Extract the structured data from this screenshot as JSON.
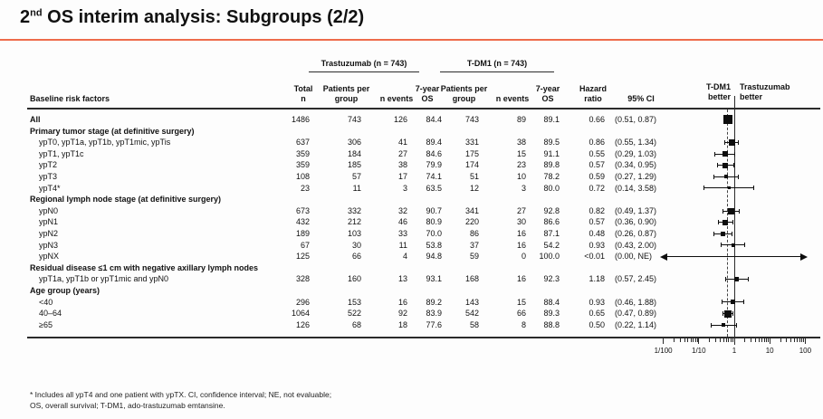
{
  "title": {
    "num": "2",
    "sup": "nd",
    "rest": " OS interim analysis: Subgroups (2/2)"
  },
  "colors": {
    "accent": "#ee6b4b",
    "text": "#111111",
    "rule": "#2b2b2b"
  },
  "header": {
    "baseline": "Baseline risk factors",
    "total_line1": "Total",
    "total_line2": "n",
    "group1": "Trastuzumab (n = 743)",
    "group2": "T-DM1 (n = 743)",
    "pts_line1": "Patients per",
    "pts_line2": "group",
    "events": "n events",
    "os_line1": "7-year",
    "os_line2": "OS",
    "hazard_line1": "Hazard",
    "hazard_line2": "ratio",
    "ci": "95% CI"
  },
  "plot_labels": {
    "left1": "T-DM1",
    "left2": "better",
    "right1": "Trastuzumab",
    "right2": "better"
  },
  "footnote": {
    "line1": "* Includes all ypT4 and one patient with ypTX. CI, confidence interval; NE, not evaluable;",
    "line2": "OS, overall survival; T-DM1, ado-trastuzumab emtansine."
  },
  "chart_data": {
    "type": "table",
    "title": "2nd OS interim analysis: Subgroups (2/2)",
    "columns": [
      "Baseline risk factors",
      "Total n",
      "Trastuzumab Patients per group",
      "Trastuzumab n events",
      "Trastuzumab 7-year OS",
      "T-DM1 Patients per group",
      "T-DM1 n events",
      "T-DM1 7-year OS",
      "Hazard ratio",
      "95% CI"
    ],
    "axis": {
      "scale": "log",
      "tick_values": [
        0.01,
        0.1,
        1,
        10,
        100
      ],
      "tick_labels": [
        "1/100",
        "1/10",
        "1",
        "10",
        "100"
      ],
      "reference_line": 1.0,
      "dashed_line_at": 0.66,
      "left_label": "T-DM1 better",
      "right_label": "Trastuzumab better"
    },
    "rows": [
      {
        "kind": "data",
        "emphasis": true,
        "label": "All",
        "total_n": "1486",
        "t_pts": "743",
        "t_events": "126",
        "t_os": "84.4",
        "d_pts": "743",
        "d_events": "89",
        "d_os": "89.1",
        "hr": "0.66",
        "ci": "(0.51, 0.87)",
        "hr_value": 0.66,
        "ci_low": 0.51,
        "ci_high": 0.87,
        "marker_size": 10
      },
      {
        "kind": "section",
        "label": "Primary tumor stage (at definitive surgery)"
      },
      {
        "kind": "data",
        "label": "ypT0, ypT1a, ypT1b, ypT1mic, ypTis",
        "total_n": "637",
        "t_pts": "306",
        "t_events": "41",
        "t_os": "89.4",
        "d_pts": "331",
        "d_events": "38",
        "d_os": "89.5",
        "hr": "0.86",
        "ci": "(0.55, 1.34)",
        "hr_value": 0.86,
        "ci_low": 0.55,
        "ci_high": 1.34,
        "marker_size": 7
      },
      {
        "kind": "data",
        "label": "ypT1, ypT1c",
        "total_n": "359",
        "t_pts": "184",
        "t_events": "27",
        "t_os": "84.6",
        "d_pts": "175",
        "d_events": "15",
        "d_os": "91.1",
        "hr": "0.55",
        "ci": "(0.29, 1.03)",
        "hr_value": 0.55,
        "ci_low": 0.29,
        "ci_high": 1.03,
        "marker_size": 6
      },
      {
        "kind": "data",
        "label": "ypT2",
        "total_n": "359",
        "t_pts": "185",
        "t_events": "38",
        "t_os": "79.9",
        "d_pts": "174",
        "d_events": "23",
        "d_os": "89.8",
        "hr": "0.57",
        "ci": "(0.34, 0.95)",
        "hr_value": 0.57,
        "ci_low": 0.34,
        "ci_high": 0.95,
        "marker_size": 6
      },
      {
        "kind": "data",
        "label": "ypT3",
        "total_n": "108",
        "t_pts": "57",
        "t_events": "17",
        "t_os": "74.1",
        "d_pts": "51",
        "d_events": "10",
        "d_os": "78.2",
        "hr": "0.59",
        "ci": "(0.27, 1.29)",
        "hr_value": 0.59,
        "ci_low": 0.27,
        "ci_high": 1.29,
        "marker_size": 4
      },
      {
        "kind": "data",
        "label": "ypT4*",
        "total_n": "23",
        "t_pts": "11",
        "t_events": "3",
        "t_os": "63.5",
        "d_pts": "12",
        "d_events": "3",
        "d_os": "80.0",
        "hr": "0.72",
        "ci": "(0.14, 3.58)",
        "hr_value": 0.72,
        "ci_low": 0.14,
        "ci_high": 3.58,
        "marker_size": 3
      },
      {
        "kind": "section",
        "label": "Regional lymph node stage (at definitive surgery)"
      },
      {
        "kind": "data",
        "label": "ypN0",
        "total_n": "673",
        "t_pts": "332",
        "t_events": "32",
        "t_os": "90.7",
        "d_pts": "341",
        "d_events": "27",
        "d_os": "92.8",
        "hr": "0.82",
        "ci": "(0.49, 1.37)",
        "hr_value": 0.82,
        "ci_low": 0.49,
        "ci_high": 1.37,
        "marker_size": 7
      },
      {
        "kind": "data",
        "label": "ypN1",
        "total_n": "432",
        "t_pts": "212",
        "t_events": "46",
        "t_os": "80.9",
        "d_pts": "220",
        "d_events": "30",
        "d_os": "86.6",
        "hr": "0.57",
        "ci": "(0.36, 0.90)",
        "hr_value": 0.57,
        "ci_low": 0.36,
        "ci_high": 0.9,
        "marker_size": 6
      },
      {
        "kind": "data",
        "label": "ypN2",
        "total_n": "189",
        "t_pts": "103",
        "t_events": "33",
        "t_os": "70.0",
        "d_pts": "86",
        "d_events": "16",
        "d_os": "87.1",
        "hr": "0.48",
        "ci": "(0.26, 0.87)",
        "hr_value": 0.48,
        "ci_low": 0.26,
        "ci_high": 0.87,
        "marker_size": 5
      },
      {
        "kind": "data",
        "label": "ypN3",
        "total_n": "67",
        "t_pts": "30",
        "t_events": "11",
        "t_os": "53.8",
        "d_pts": "37",
        "d_events": "16",
        "d_os": "54.2",
        "hr": "0.93",
        "ci": "(0.43, 2.00)",
        "hr_value": 0.93,
        "ci_low": 0.43,
        "ci_high": 2.0,
        "marker_size": 4
      },
      {
        "kind": "data",
        "label": "ypNX",
        "total_n": "125",
        "t_pts": "66",
        "t_events": "4",
        "t_os": "94.8",
        "d_pts": "59",
        "d_events": "0",
        "d_os": "100.0",
        "hr": "<0.01",
        "ci": "(0.00, NE)",
        "plot": "arrow"
      },
      {
        "kind": "section",
        "label": "Residual disease ≤1 cm with negative axillary lymph nodes"
      },
      {
        "kind": "data",
        "label": "ypT1a, ypT1b or ypT1mic and ypN0",
        "total_n": "328",
        "t_pts": "160",
        "t_events": "13",
        "t_os": "93.1",
        "d_pts": "168",
        "d_events": "16",
        "d_os": "92.3",
        "hr": "1.18",
        "ci": "(0.57, 2.45)",
        "hr_value": 1.18,
        "ci_low": 0.57,
        "ci_high": 2.45,
        "marker_size": 5
      },
      {
        "kind": "section",
        "label": "Age group (years)"
      },
      {
        "kind": "data",
        "label": "<40",
        "total_n": "296",
        "t_pts": "153",
        "t_events": "16",
        "t_os": "89.2",
        "d_pts": "143",
        "d_events": "15",
        "d_os": "88.4",
        "hr": "0.93",
        "ci": "(0.46, 1.88)",
        "hr_value": 0.93,
        "ci_low": 0.46,
        "ci_high": 1.88,
        "marker_size": 5
      },
      {
        "kind": "data",
        "label": "40–64",
        "total_n": "1064",
        "t_pts": "522",
        "t_events": "92",
        "t_os": "83.9",
        "d_pts": "542",
        "d_events": "66",
        "d_os": "89.3",
        "hr": "0.65",
        "ci": "(0.47, 0.89)",
        "hr_value": 0.65,
        "ci_low": 0.47,
        "ci_high": 0.89,
        "marker_size": 8
      },
      {
        "kind": "data",
        "label": "≥65",
        "total_n": "126",
        "t_pts": "68",
        "t_events": "18",
        "t_os": "77.6",
        "d_pts": "58",
        "d_events": "8",
        "d_os": "88.8",
        "hr": "0.50",
        "ci": "(0.22, 1.14)",
        "hr_value": 0.5,
        "ci_low": 0.22,
        "ci_high": 1.14,
        "marker_size": 4
      }
    ]
  }
}
